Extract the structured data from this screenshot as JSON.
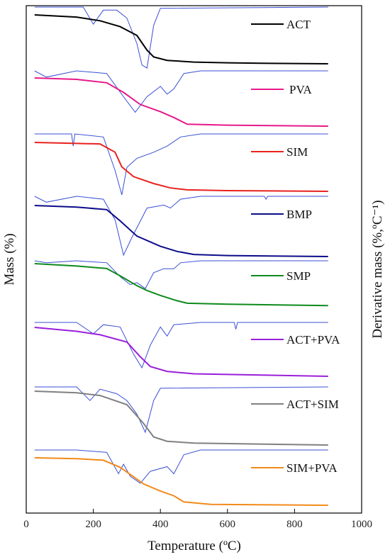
{
  "chart_data": {
    "type": "line",
    "xlabel": "Temperature (ºC)",
    "ylabel_left": "Mass (%)",
    "ylabel_right": "Derivative mass (%,ºC⁻¹)",
    "xlim": [
      0,
      1000
    ],
    "x_ticks": [
      "0",
      "200",
      "400",
      "600",
      "800",
      "1000"
    ],
    "grid": false,
    "derivative_color": "#3a4fd6",
    "axis_title_right_color": "#2a7ab8",
    "series": [
      {
        "name": "ACT",
        "color": "#000000",
        "mass": [
          [
            25,
            0.0
          ],
          [
            150,
            0.045
          ],
          [
            220,
            0.12
          ],
          [
            280,
            0.24
          ],
          [
            330,
            0.42
          ],
          [
            360,
            0.72
          ],
          [
            380,
            0.86
          ],
          [
            420,
            0.93
          ],
          [
            500,
            0.965
          ],
          [
            600,
            0.98
          ],
          [
            700,
            0.99
          ],
          [
            900,
            1.0
          ]
        ],
        "deriv": [
          [
            25,
            0.0
          ],
          [
            170,
            0.0
          ],
          [
            200,
            0.28
          ],
          [
            230,
            0.05
          ],
          [
            270,
            0.05
          ],
          [
            300,
            0.18
          ],
          [
            330,
            0.6
          ],
          [
            345,
            0.95
          ],
          [
            360,
            1.0
          ],
          [
            380,
            0.3
          ],
          [
            400,
            0.02
          ],
          [
            900,
            0.0
          ]
        ]
      },
      {
        "name": "PVA",
        "color": "#e6198a",
        "mass": [
          [
            25,
            0.0
          ],
          [
            150,
            0.03
          ],
          [
            240,
            0.1
          ],
          [
            290,
            0.3
          ],
          [
            340,
            0.55
          ],
          [
            400,
            0.7
          ],
          [
            440,
            0.82
          ],
          [
            480,
            0.96
          ],
          [
            600,
            0.98
          ],
          [
            900,
            1.0
          ]
        ],
        "deriv": [
          [
            25,
            0.0
          ],
          [
            60,
            0.12
          ],
          [
            150,
            0.0
          ],
          [
            240,
            0.05
          ],
          [
            290,
            0.5
          ],
          [
            325,
            0.8
          ],
          [
            360,
            0.5
          ],
          [
            400,
            0.3
          ],
          [
            420,
            0.45
          ],
          [
            440,
            0.35
          ],
          [
            470,
            0.05
          ],
          [
            520,
            0.0
          ],
          [
            900,
            0.0
          ]
        ]
      },
      {
        "name": "SIM",
        "color": "#e8221e",
        "mass": [
          [
            25,
            0.0
          ],
          [
            150,
            0.02
          ],
          [
            220,
            0.03
          ],
          [
            265,
            0.2
          ],
          [
            285,
            0.5
          ],
          [
            320,
            0.7
          ],
          [
            380,
            0.84
          ],
          [
            430,
            0.93
          ],
          [
            480,
            0.97
          ],
          [
            600,
            0.985
          ],
          [
            900,
            1.0
          ]
        ],
        "deriv": [
          [
            25,
            0.0
          ],
          [
            135,
            0.0
          ],
          [
            140,
            0.2
          ],
          [
            145,
            0.0
          ],
          [
            230,
            0.05
          ],
          [
            265,
            0.6
          ],
          [
            285,
            1.0
          ],
          [
            300,
            0.55
          ],
          [
            330,
            0.4
          ],
          [
            380,
            0.3
          ],
          [
            420,
            0.2
          ],
          [
            460,
            0.05
          ],
          [
            520,
            0.0
          ],
          [
            900,
            0.0
          ]
        ]
      },
      {
        "name": "BMP",
        "color": "#0c0c8a",
        "mass": [
          [
            25,
            0.0
          ],
          [
            150,
            0.03
          ],
          [
            240,
            0.08
          ],
          [
            280,
            0.3
          ],
          [
            330,
            0.6
          ],
          [
            400,
            0.8
          ],
          [
            450,
            0.9
          ],
          [
            500,
            0.96
          ],
          [
            600,
            0.98
          ],
          [
            900,
            1.0
          ]
        ],
        "deriv": [
          [
            25,
            0.0
          ],
          [
            60,
            0.1
          ],
          [
            150,
            0.0
          ],
          [
            230,
            0.05
          ],
          [
            265,
            0.4
          ],
          [
            290,
            1.0
          ],
          [
            315,
            0.7
          ],
          [
            360,
            0.2
          ],
          [
            410,
            0.15
          ],
          [
            430,
            0.2
          ],
          [
            460,
            0.05
          ],
          [
            520,
            0.0
          ],
          [
            710,
            0.0
          ],
          [
            715,
            0.05
          ],
          [
            720,
            0.0
          ],
          [
            900,
            0.0
          ]
        ]
      },
      {
        "name": "SMP",
        "color": "#0e8a1c",
        "mass": [
          [
            25,
            0.0
          ],
          [
            150,
            0.05
          ],
          [
            240,
            0.1
          ],
          [
            280,
            0.25
          ],
          [
            330,
            0.45
          ],
          [
            360,
            0.55
          ],
          [
            400,
            0.65
          ],
          [
            450,
            0.76
          ],
          [
            480,
            0.81
          ],
          [
            600,
            0.83
          ],
          [
            900,
            0.86
          ]
        ],
        "deriv": [
          [
            25,
            0.0
          ],
          [
            60,
            0.05
          ],
          [
            150,
            0.0
          ],
          [
            240,
            0.05
          ],
          [
            280,
            0.4
          ],
          [
            310,
            0.6
          ],
          [
            330,
            0.55
          ],
          [
            355,
            0.7
          ],
          [
            380,
            0.3
          ],
          [
            410,
            0.2
          ],
          [
            440,
            0.2
          ],
          [
            460,
            0.05
          ],
          [
            520,
            0.0
          ],
          [
            900,
            0.0
          ]
        ]
      },
      {
        "name": "ACT+PVA",
        "color": "#9a1fd9",
        "mass": [
          [
            25,
            0.0
          ],
          [
            150,
            0.08
          ],
          [
            220,
            0.15
          ],
          [
            300,
            0.3
          ],
          [
            340,
            0.6
          ],
          [
            370,
            0.8
          ],
          [
            420,
            0.9
          ],
          [
            500,
            0.95
          ],
          [
            900,
            1.0
          ]
        ],
        "deriv": [
          [
            25,
            0.0
          ],
          [
            150,
            0.0
          ],
          [
            200,
            0.25
          ],
          [
            230,
            0.05
          ],
          [
            280,
            0.1
          ],
          [
            320,
            0.7
          ],
          [
            345,
            1.0
          ],
          [
            370,
            0.5
          ],
          [
            400,
            0.1
          ],
          [
            420,
            0.3
          ],
          [
            440,
            0.05
          ],
          [
            520,
            0.0
          ],
          [
            620,
            0.0
          ],
          [
            625,
            0.15
          ],
          [
            630,
            0.0
          ],
          [
            900,
            0.0
          ]
        ]
      },
      {
        "name": "ACT+SIM",
        "color": "#808080",
        "mass": [
          [
            25,
            0.0
          ],
          [
            150,
            0.03
          ],
          [
            220,
            0.08
          ],
          [
            300,
            0.25
          ],
          [
            350,
            0.6
          ],
          [
            380,
            0.85
          ],
          [
            420,
            0.93
          ],
          [
            500,
            0.965
          ],
          [
            900,
            1.0
          ]
        ],
        "deriv": [
          [
            25,
            0.0
          ],
          [
            150,
            0.0
          ],
          [
            190,
            0.3
          ],
          [
            220,
            0.05
          ],
          [
            270,
            0.15
          ],
          [
            300,
            0.3
          ],
          [
            330,
            0.6
          ],
          [
            355,
            1.0
          ],
          [
            380,
            0.3
          ],
          [
            400,
            0.03
          ],
          [
            900,
            0.0
          ]
        ]
      },
      {
        "name": "SIM+PVA",
        "color": "#f28a1a",
        "mass": [
          [
            25,
            0.0
          ],
          [
            150,
            0.02
          ],
          [
            230,
            0.05
          ],
          [
            280,
            0.2
          ],
          [
            320,
            0.4
          ],
          [
            350,
            0.55
          ],
          [
            400,
            0.7
          ],
          [
            440,
            0.8
          ],
          [
            470,
            0.93
          ],
          [
            550,
            0.98
          ],
          [
            900,
            1.0
          ]
        ],
        "deriv": [
          [
            25,
            0.0
          ],
          [
            150,
            0.0
          ],
          [
            240,
            0.05
          ],
          [
            275,
            0.5
          ],
          [
            290,
            0.3
          ],
          [
            310,
            0.55
          ],
          [
            340,
            0.7
          ],
          [
            370,
            0.45
          ],
          [
            420,
            0.35
          ],
          [
            440,
            0.5
          ],
          [
            470,
            0.1
          ],
          [
            520,
            0.0
          ],
          [
            900,
            0.0
          ]
        ]
      }
    ]
  }
}
